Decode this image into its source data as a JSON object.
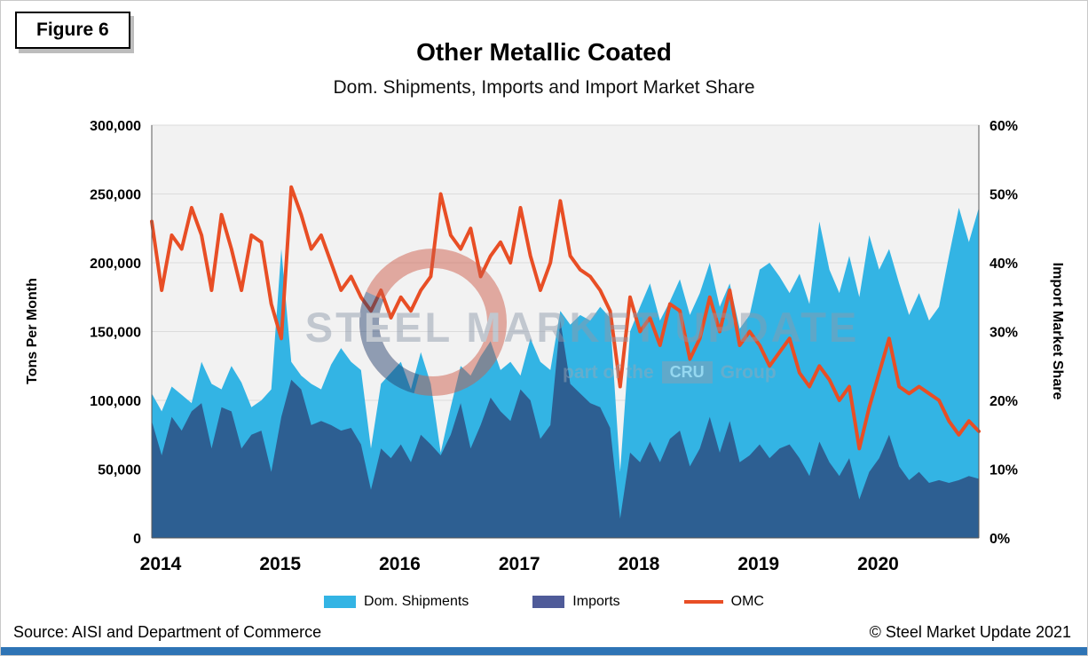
{
  "figure_label": "Figure 6",
  "title": "Other Metallic Coated",
  "subtitle": "Dom. Shipments, Imports and Import Market Share",
  "source": "Source: AISI and Department of Commerce",
  "copyright": "© Steel Market Update 2021",
  "watermark": {
    "line1": "STEEL MARKET UPDATE",
    "line2_prefix": "part of the",
    "line2_box": "CRU",
    "line2_suffix": "Group"
  },
  "chart_data": {
    "type": "area",
    "overlay_type": "line",
    "title": "Other Metallic Coated",
    "subtitle": "Dom. Shipments, Imports and Import Market Share",
    "x_start": "2014-01",
    "x_end": "2020-12",
    "x_tick_labels": [
      "2014",
      "2015",
      "2016",
      "2017",
      "2018",
      "2019",
      "2020"
    ],
    "left_axis": {
      "label": "Tons Per Month",
      "min": 0,
      "max": 300000,
      "step": 50000
    },
    "right_axis": {
      "label": "Import Market Share",
      "min": 0,
      "max": 60,
      "step": 10,
      "unit": "%"
    },
    "grid": true,
    "plot_bg": "#f2f2f2",
    "grid_color": "#dcdcdc",
    "legend_position": "bottom",
    "legend": [
      {
        "name": "Dom. Shipments",
        "type": "area",
        "color": "#33b4e4",
        "plot_color": "#33b4e4"
      },
      {
        "name": "Imports",
        "type": "area",
        "color": "#4f5b99",
        "plot_color": "#2d5f92"
      },
      {
        "name": "OMC",
        "type": "line",
        "color": "#e84e25",
        "plot_color": "#e84e25"
      }
    ],
    "series": {
      "dom_shipments": [
        105000,
        92000,
        110000,
        104000,
        98000,
        128000,
        112000,
        108000,
        125000,
        113000,
        95000,
        100000,
        108000,
        210000,
        128000,
        118000,
        112000,
        108000,
        126000,
        138000,
        128000,
        122000,
        65000,
        112000,
        120000,
        128000,
        108000,
        135000,
        112000,
        62000,
        95000,
        125000,
        118000,
        132000,
        143000,
        122000,
        128000,
        118000,
        145000,
        128000,
        122000,
        165000,
        155000,
        162000,
        158000,
        168000,
        160000,
        48000,
        150000,
        168000,
        185000,
        158000,
        172000,
        188000,
        162000,
        178000,
        200000,
        168000,
        185000,
        152000,
        162000,
        195000,
        200000,
        190000,
        178000,
        192000,
        170000,
        230000,
        195000,
        178000,
        205000,
        175000,
        220000,
        195000,
        210000,
        185000,
        162000,
        178000,
        158000,
        168000,
        205000,
        240000,
        215000,
        240000
      ],
      "imports": [
        85000,
        60000,
        88000,
        78000,
        92000,
        98000,
        65000,
        95000,
        92000,
        65000,
        75000,
        78000,
        48000,
        88000,
        115000,
        108000,
        82000,
        85000,
        82000,
        78000,
        80000,
        68000,
        35000,
        65000,
        58000,
        68000,
        55000,
        75000,
        68000,
        60000,
        75000,
        98000,
        65000,
        82000,
        102000,
        92000,
        85000,
        108000,
        100000,
        72000,
        82000,
        158000,
        112000,
        105000,
        98000,
        95000,
        80000,
        14000,
        62000,
        55000,
        70000,
        55000,
        72000,
        78000,
        52000,
        65000,
        88000,
        62000,
        85000,
        55000,
        60000,
        68000,
        58000,
        65000,
        68000,
        58000,
        45000,
        70000,
        55000,
        45000,
        58000,
        28000,
        48000,
        58000,
        75000,
        52000,
        42000,
        48000,
        40000,
        42000,
        40000,
        42000,
        45000,
        43000
      ],
      "omc_share_pct": [
        46,
        36,
        44,
        42,
        48,
        44,
        36,
        47,
        42,
        36,
        44,
        43,
        34,
        29,
        51,
        47,
        42,
        44,
        40,
        36,
        38,
        35,
        33,
        36,
        32,
        35,
        33,
        36,
        38,
        50,
        44,
        42,
        45,
        38,
        41,
        43,
        40,
        48,
        41,
        36,
        40,
        49,
        41,
        39,
        38,
        36,
        33,
        22,
        35,
        30,
        32,
        28,
        34,
        33,
        26,
        29,
        35,
        30,
        36,
        28,
        30,
        28,
        25,
        27,
        29,
        24,
        22,
        25,
        23,
        20,
        22,
        13,
        19,
        24,
        29,
        22,
        21,
        22,
        21,
        20,
        17,
        15,
        17,
        15.5
      ]
    }
  }
}
